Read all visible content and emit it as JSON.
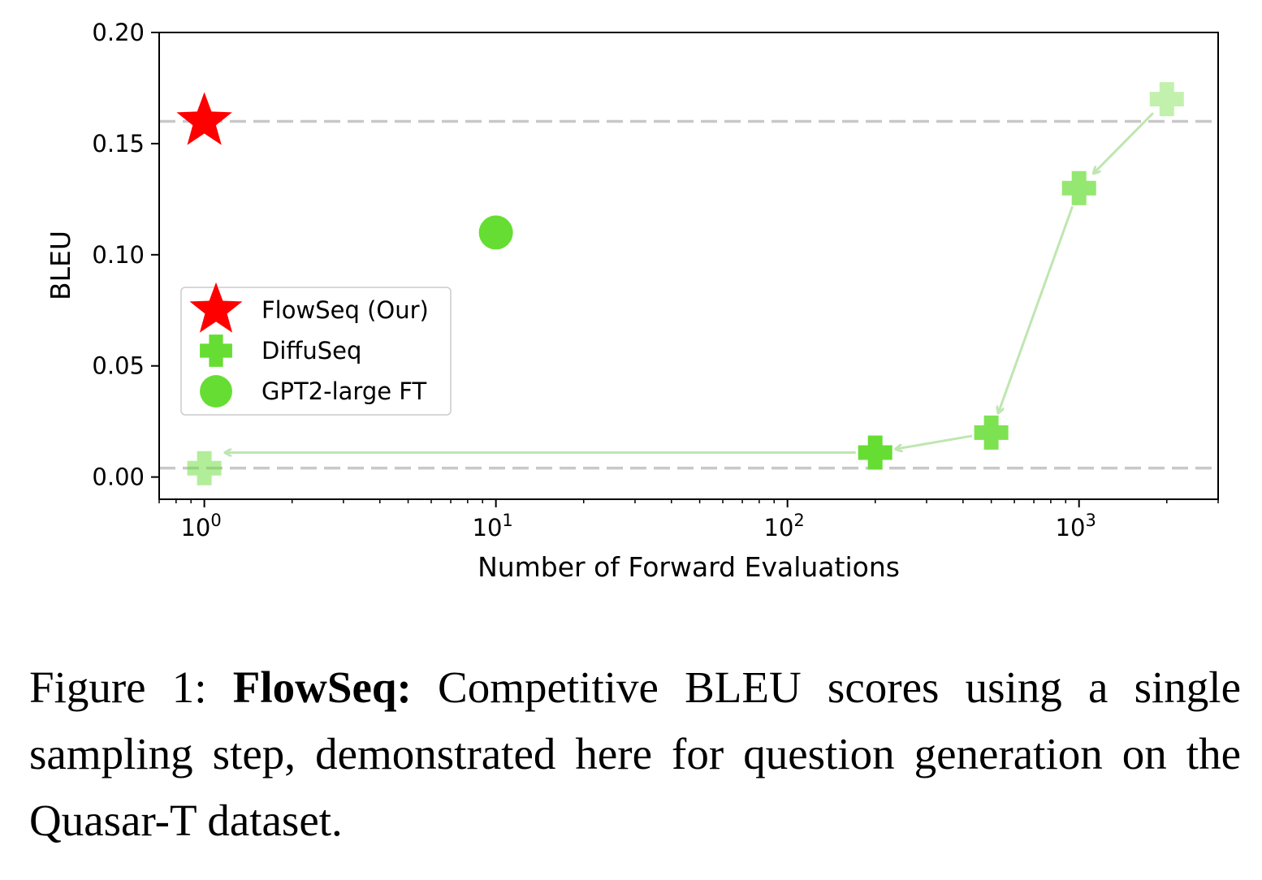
{
  "chart_data": {
    "type": "scatter",
    "xscale": "log",
    "xlabel": "Number of Forward Evaluations",
    "ylabel": "BLEU",
    "xlim": [
      0.7,
      3000
    ],
    "ylim": [
      -0.01,
      0.2
    ],
    "yticks": [
      "0.00",
      "0.05",
      "0.10",
      "0.15",
      "0.20"
    ],
    "yticks_values": [
      0,
      0.05,
      0.1,
      0.15,
      0.2
    ],
    "xticks": [
      {
        "value": 1,
        "base": "10",
        "exp": "0"
      },
      {
        "value": 10,
        "base": "10",
        "exp": "1"
      },
      {
        "value": 100,
        "base": "10",
        "exp": "2"
      },
      {
        "value": 1000,
        "base": "10",
        "exp": "3"
      }
    ],
    "hlines": [
      0.16,
      0.004
    ],
    "series": [
      {
        "name": "FlowSeq (Our)",
        "marker": "star",
        "color": "#ff0000",
        "points": [
          {
            "x": 1,
            "y": 0.16
          }
        ]
      },
      {
        "name": "DiffuSeq",
        "marker": "plus",
        "color": "#66dd33",
        "points": [
          {
            "x": 2000,
            "y": 0.17
          },
          {
            "x": 1000,
            "y": 0.13
          },
          {
            "x": 500,
            "y": 0.02
          },
          {
            "x": 200,
            "y": 0.011
          },
          {
            "x": 1,
            "y": 0.004
          }
        ],
        "alphas": [
          0.4,
          0.7,
          0.85,
          1.0,
          0.5
        ]
      },
      {
        "name": "GPT2-large FT",
        "marker": "circle",
        "color": "#66dd33",
        "points": [
          {
            "x": 10,
            "y": 0.11
          }
        ]
      }
    ],
    "arrows": [
      {
        "from": [
          2000,
          0.17
        ],
        "to": [
          1000,
          0.13
        ]
      },
      {
        "from": [
          1000,
          0.13
        ],
        "to": [
          500,
          0.02
        ]
      },
      {
        "from": [
          500,
          0.02
        ],
        "to": [
          200,
          0.011
        ]
      },
      {
        "from": [
          200,
          0.011
        ],
        "to": [
          1,
          0.011
        ]
      }
    ],
    "legend": {
      "location": "center-left"
    }
  },
  "caption": {
    "prefix": "Figure 1: ",
    "bold": "FlowSeq:",
    "text": " Competitive BLEU scores using a single sampling step, demonstrated here for question generation on the Quasar-T dataset."
  }
}
